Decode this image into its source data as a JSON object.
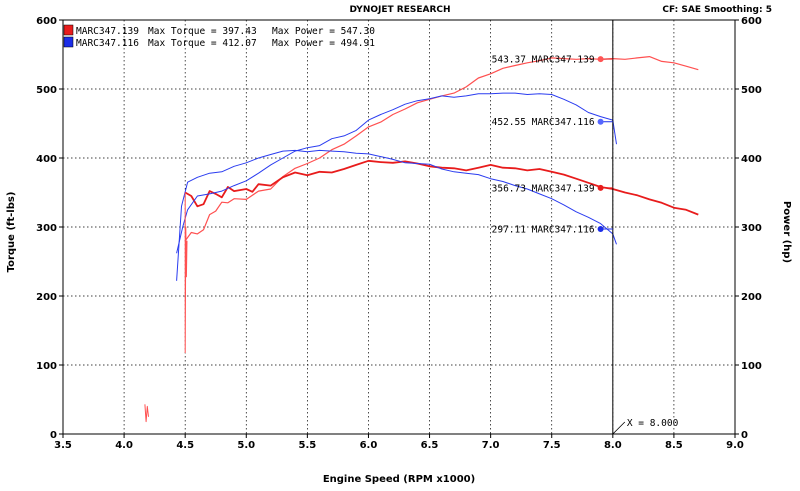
{
  "header": {
    "title": "DYNOJET RESEARCH",
    "info": "CF: SAE  Smoothing: 5"
  },
  "chart_data": {
    "type": "line",
    "xlabel": "Engine Speed (RPM x1000)",
    "ylabel_left": "Torque (ft-lbs)",
    "ylabel_right": "Power (hp)",
    "xlim": [
      3.5,
      9.0
    ],
    "ylim": [
      0,
      600
    ],
    "xticks": [
      "3.5",
      "4.0",
      "4.5",
      "5.0",
      "5.5",
      "6.0",
      "6.5",
      "7.0",
      "7.5",
      "8.0",
      "8.5",
      "9.0"
    ],
    "yticks": [
      "0",
      "100",
      "200",
      "300",
      "400",
      "500",
      "600"
    ],
    "grid": true,
    "legend": [
      {
        "run": "MARC347.139",
        "torque_label": "Max Torque = 397.43",
        "power_label": "Max Power = 547.30",
        "color": "#e81c1c"
      },
      {
        "run": "MARC347.116",
        "torque_label": "Max Torque = 412.07",
        "power_label": "Max Power = 494.91",
        "color": "#1c2ee8"
      }
    ],
    "cursor": {
      "x": 8.0,
      "label": "X = 8.000"
    },
    "cursor_readouts": [
      {
        "text": "543.37 MARC347.139",
        "x": 7.9,
        "y": 543.37,
        "color": "#e81c1c",
        "marker": "#ff5555"
      },
      {
        "text": "452.55 MARC347.116",
        "x": 7.9,
        "y": 452.55,
        "color": "#1c2ee8",
        "marker": "#5566ff"
      },
      {
        "text": "356.73 MARC347.139",
        "x": 7.9,
        "y": 356.73,
        "color": "#e81c1c",
        "marker": "#e81c1c"
      },
      {
        "text": "297.11 MARC347.116",
        "x": 7.9,
        "y": 297.11,
        "color": "#1c2ee8",
        "marker": "#1c2ee8"
      }
    ],
    "series": [
      {
        "name": "MARC347.139 Power",
        "color": "#ff5050",
        "width": 1.2,
        "points": [
          [
            4.5,
            280
          ],
          [
            4.55,
            292
          ],
          [
            4.6,
            290
          ],
          [
            4.65,
            296
          ],
          [
            4.7,
            318
          ],
          [
            4.75,
            323
          ],
          [
            4.8,
            336
          ],
          [
            4.85,
            335
          ],
          [
            4.9,
            341
          ],
          [
            5.0,
            340
          ],
          [
            5.1,
            352
          ],
          [
            5.2,
            355
          ],
          [
            5.3,
            373
          ],
          [
            5.4,
            385
          ],
          [
            5.5,
            392
          ],
          [
            5.6,
            400
          ],
          [
            5.7,
            412
          ],
          [
            5.8,
            420
          ],
          [
            5.9,
            432
          ],
          [
            6.0,
            445
          ],
          [
            6.1,
            452
          ],
          [
            6.2,
            463
          ],
          [
            6.3,
            471
          ],
          [
            6.4,
            480
          ],
          [
            6.5,
            485
          ],
          [
            6.6,
            490
          ],
          [
            6.7,
            494
          ],
          [
            6.8,
            503
          ],
          [
            6.9,
            516
          ],
          [
            7.0,
            522
          ],
          [
            7.1,
            530
          ],
          [
            7.2,
            534
          ],
          [
            7.3,
            538
          ],
          [
            7.4,
            541
          ],
          [
            7.5,
            545
          ],
          [
            7.6,
            544
          ],
          [
            7.7,
            543
          ],
          [
            7.8,
            544
          ],
          [
            7.9,
            543
          ],
          [
            8.0,
            544
          ],
          [
            8.1,
            543
          ],
          [
            8.2,
            545
          ],
          [
            8.3,
            547
          ],
          [
            8.4,
            540
          ],
          [
            8.5,
            538
          ],
          [
            8.6,
            533
          ],
          [
            8.7,
            528
          ]
        ]
      },
      {
        "name": "MARC347.139 Torque",
        "color": "#e81c1c",
        "width": 1.8,
        "points": [
          [
            4.5,
            350
          ],
          [
            4.55,
            345
          ],
          [
            4.6,
            330
          ],
          [
            4.65,
            333
          ],
          [
            4.7,
            352
          ],
          [
            4.75,
            348
          ],
          [
            4.8,
            343
          ],
          [
            4.85,
            358
          ],
          [
            4.9,
            352
          ],
          [
            5.0,
            355
          ],
          [
            5.05,
            351
          ],
          [
            5.1,
            362
          ],
          [
            5.2,
            360
          ],
          [
            5.3,
            372
          ],
          [
            5.4,
            379
          ],
          [
            5.5,
            375
          ],
          [
            5.6,
            380
          ],
          [
            5.7,
            379
          ],
          [
            5.8,
            384
          ],
          [
            5.9,
            390
          ],
          [
            6.0,
            396
          ],
          [
            6.1,
            394
          ],
          [
            6.2,
            393
          ],
          [
            6.3,
            395
          ],
          [
            6.4,
            392
          ],
          [
            6.5,
            388
          ],
          [
            6.6,
            386
          ],
          [
            6.7,
            385
          ],
          [
            6.8,
            382
          ],
          [
            6.9,
            386
          ],
          [
            7.0,
            390
          ],
          [
            7.1,
            386
          ],
          [
            7.2,
            385
          ],
          [
            7.3,
            382
          ],
          [
            7.4,
            384
          ],
          [
            7.5,
            380
          ],
          [
            7.6,
            376
          ],
          [
            7.7,
            370
          ],
          [
            7.8,
            364
          ],
          [
            7.9,
            358
          ],
          [
            8.0,
            355
          ],
          [
            8.1,
            350
          ],
          [
            8.2,
            346
          ],
          [
            8.3,
            340
          ],
          [
            8.4,
            335
          ],
          [
            8.5,
            328
          ],
          [
            8.6,
            325
          ],
          [
            8.7,
            318
          ]
        ]
      },
      {
        "name": "MARC347.116 Power",
        "color": "#2a3cf0",
        "width": 1.0,
        "points": [
          [
            4.43,
            262
          ],
          [
            4.48,
            300
          ],
          [
            4.52,
            325
          ],
          [
            4.6,
            345
          ],
          [
            4.7,
            348
          ],
          [
            4.8,
            352
          ],
          [
            4.9,
            360
          ],
          [
            5.0,
            367
          ],
          [
            5.1,
            378
          ],
          [
            5.2,
            390
          ],
          [
            5.3,
            400
          ],
          [
            5.4,
            410
          ],
          [
            5.5,
            415
          ],
          [
            5.6,
            418
          ],
          [
            5.7,
            428
          ],
          [
            5.8,
            432
          ],
          [
            5.9,
            440
          ],
          [
            6.0,
            455
          ],
          [
            6.1,
            463
          ],
          [
            6.2,
            470
          ],
          [
            6.3,
            478
          ],
          [
            6.4,
            483
          ],
          [
            6.5,
            486
          ],
          [
            6.6,
            490
          ],
          [
            6.7,
            488
          ],
          [
            6.8,
            490
          ],
          [
            6.9,
            493
          ],
          [
            7.0,
            493
          ],
          [
            7.1,
            494
          ],
          [
            7.2,
            494
          ],
          [
            7.3,
            492
          ],
          [
            7.4,
            493
          ],
          [
            7.5,
            492
          ],
          [
            7.6,
            485
          ],
          [
            7.7,
            477
          ],
          [
            7.8,
            466
          ],
          [
            7.9,
            460
          ],
          [
            8.0,
            455
          ],
          [
            8.03,
            420
          ]
        ]
      },
      {
        "name": "MARC347.116 Torque",
        "color": "#2a3cf0",
        "width": 1.0,
        "points": [
          [
            4.43,
            222
          ],
          [
            4.47,
            330
          ],
          [
            4.52,
            365
          ],
          [
            4.6,
            372
          ],
          [
            4.7,
            378
          ],
          [
            4.8,
            380
          ],
          [
            4.9,
            388
          ],
          [
            5.0,
            393
          ],
          [
            5.1,
            400
          ],
          [
            5.2,
            405
          ],
          [
            5.3,
            410
          ],
          [
            5.4,
            411
          ],
          [
            5.5,
            409
          ],
          [
            5.6,
            411
          ],
          [
            5.7,
            410
          ],
          [
            5.8,
            409
          ],
          [
            5.9,
            407
          ],
          [
            6.0,
            406
          ],
          [
            6.1,
            402
          ],
          [
            6.2,
            398
          ],
          [
            6.3,
            393
          ],
          [
            6.4,
            392
          ],
          [
            6.5,
            391
          ],
          [
            6.6,
            384
          ],
          [
            6.7,
            380
          ],
          [
            6.8,
            378
          ],
          [
            6.9,
            376
          ],
          [
            7.0,
            370
          ],
          [
            7.1,
            366
          ],
          [
            7.2,
            360
          ],
          [
            7.3,
            355
          ],
          [
            7.4,
            348
          ],
          [
            7.5,
            341
          ],
          [
            7.6,
            332
          ],
          [
            7.7,
            322
          ],
          [
            7.8,
            314
          ],
          [
            7.9,
            305
          ],
          [
            8.0,
            290
          ],
          [
            8.03,
            275
          ]
        ]
      },
      {
        "name": "MARC347.139 Torque spike",
        "color": "#ff5050",
        "width": 1.0,
        "points": [
          [
            4.5,
            350
          ],
          [
            4.5,
            118
          ],
          [
            4.505,
            300
          ],
          [
            4.51,
            228
          ],
          [
            4.515,
            280
          ]
        ]
      },
      {
        "name": "stray artifact",
        "color": "#ff5050",
        "width": 1.0,
        "points": [
          [
            4.17,
            43
          ],
          [
            4.18,
            18
          ],
          [
            4.19,
            40
          ],
          [
            4.2,
            25
          ]
        ]
      }
    ]
  }
}
